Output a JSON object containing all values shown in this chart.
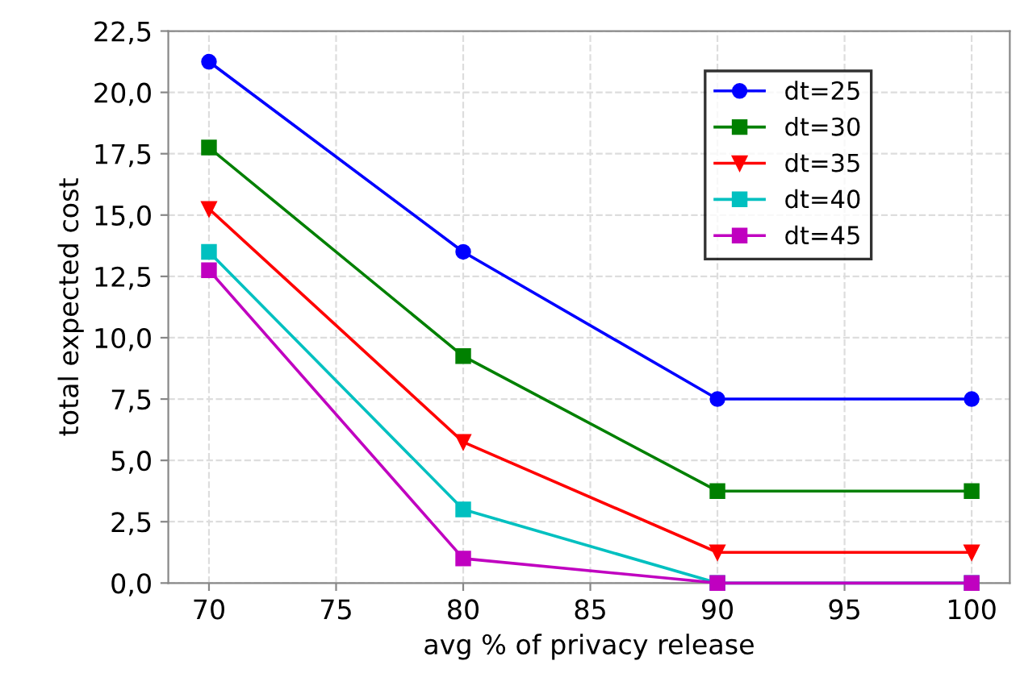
{
  "chart_data": {
    "type": "line",
    "xlabel": "avg % of privacy release",
    "ylabel": "total expected cost",
    "x": [
      70,
      80,
      90,
      100
    ],
    "series": [
      {
        "name": "dt=25",
        "color": "#0000ff",
        "marker": "circle",
        "values": [
          21.25,
          13.5,
          7.5,
          7.5
        ]
      },
      {
        "name": "dt=30",
        "color": "#008000",
        "marker": "square",
        "values": [
          17.75,
          9.25,
          3.75,
          3.75
        ]
      },
      {
        "name": "dt=35",
        "color": "#ff0000",
        "marker": "triangle",
        "values": [
          15.25,
          5.75,
          1.25,
          1.25
        ]
      },
      {
        "name": "dt=40",
        "color": "#00c0c0",
        "marker": "square",
        "values": [
          13.5,
          3.0,
          0,
          0
        ]
      },
      {
        "name": "dt=45",
        "color": "#c000c0",
        "marker": "square",
        "values": [
          12.75,
          1.0,
          0,
          0
        ]
      }
    ],
    "xlim": [
      68.4,
      101.5
    ],
    "xticks": [
      70,
      75,
      80,
      85,
      90,
      95,
      100
    ],
    "ylim": [
      0,
      22.5
    ],
    "yticks": [
      {
        "value": 0,
        "label": "0,0"
      },
      {
        "value": 2.5,
        "label": "2,5"
      },
      {
        "value": 5,
        "label": "5,0"
      },
      {
        "value": 7.5,
        "label": "7,5"
      },
      {
        "value": 10,
        "label": "10,0"
      },
      {
        "value": 12.5,
        "label": "12,5"
      },
      {
        "value": 15,
        "label": "15,0"
      },
      {
        "value": 17.5,
        "label": "17,5"
      },
      {
        "value": 20,
        "label": "20,0"
      },
      {
        "value": 22.5,
        "label": "22,5"
      }
    ],
    "grid": true,
    "legend": "top right",
    "line_style": "solid"
  }
}
